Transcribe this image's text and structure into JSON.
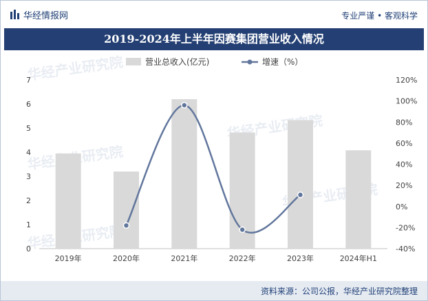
{
  "header": {
    "brand": "华经情报网",
    "slogan": "专业严谨 • 客观科学"
  },
  "title": "2019-2024年上半年因赛集团营业收入情况",
  "watermark": "华经产业研究院",
  "source": "资料来源：公司公报，华经产业研究院整理",
  "colors": {
    "bar": "#d9d9d9",
    "line": "#61769c",
    "title_band": "#233f73",
    "brand": "#1f3f76"
  },
  "chart_data": {
    "type": "bar",
    "categories": [
      "2019年",
      "2020年",
      "2021年",
      "2022年",
      "2023年",
      "2024年H1"
    ],
    "series": [
      {
        "name": "营业总收入(亿元)",
        "type": "bar",
        "axis": "left",
        "values": [
          3.95,
          3.2,
          6.2,
          4.82,
          5.33,
          4.08
        ]
      },
      {
        "name": "增速（%）",
        "type": "line",
        "axis": "right",
        "smooth": true,
        "values": [
          null,
          -18,
          96,
          -22,
          11,
          null
        ]
      }
    ],
    "y_left": {
      "min": 0,
      "max": 7,
      "ticks": [
        "0",
        "1",
        "2",
        "3",
        "4",
        "5",
        "6",
        "7"
      ]
    },
    "y_right": {
      "min": -40,
      "max": 120,
      "ticks": [
        "-40%",
        "-20%",
        "0%",
        "20%",
        "40%",
        "60%",
        "80%",
        "100%",
        "120%"
      ]
    },
    "legend_position": "top-center",
    "grid": false
  }
}
